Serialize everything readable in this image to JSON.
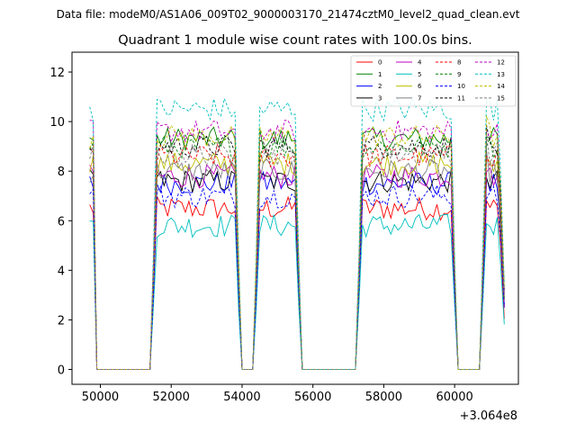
{
  "chart_data": {
    "type": "line",
    "suptitle": "Data file: modeM0/AS1A06_009T02_9000003170_21474cztM0_level2_quad_clean.evt",
    "title": "Quadrant 1 module wise count rates with 100.0s bins.",
    "xlabel": "",
    "ylabel": "",
    "x_offset_label": "+3.064e8",
    "xlim": [
      49200,
      61800
    ],
    "ylim": [
      -0.6,
      12.8
    ],
    "xticks": [
      50000,
      52000,
      54000,
      56000,
      58000,
      60000
    ],
    "xtick_labels": [
      "50000",
      "52000",
      "54000",
      "56000",
      "58000",
      "60000"
    ],
    "yticks": [
      0,
      2,
      4,
      6,
      8,
      10,
      12
    ],
    "ytick_labels": [
      "0",
      "2",
      "4",
      "6",
      "8",
      "10",
      "12"
    ],
    "legend_position": "top-right",
    "segments": [
      {
        "start": 49700,
        "end": 49800
      },
      {
        "start": 51500,
        "end": 53900
      },
      {
        "start": 54400,
        "end": 55600
      },
      {
        "start": 57300,
        "end": 60000
      },
      {
        "start": 60800,
        "end": 61400
      }
    ],
    "series": [
      {
        "name": "0",
        "color": "#ff0000",
        "dash": "solid",
        "level": 6.5,
        "amp": 0.3
      },
      {
        "name": "1",
        "color": "#008000",
        "dash": "solid",
        "level": 9.3,
        "amp": 0.3
      },
      {
        "name": "2",
        "color": "#0000ff",
        "dash": "solid",
        "level": 7.5,
        "amp": 0.3
      },
      {
        "name": "3",
        "color": "#000000",
        "dash": "solid",
        "level": 7.6,
        "amp": 0.3
      },
      {
        "name": "4",
        "color": "#bf00bf",
        "dash": "solid",
        "level": 7.8,
        "amp": 0.3
      },
      {
        "name": "5",
        "color": "#00bfbf",
        "dash": "solid",
        "level": 5.8,
        "amp": 0.3
      },
      {
        "name": "6",
        "color": "#bfbf00",
        "dash": "solid",
        "level": 8.3,
        "amp": 0.3
      },
      {
        "name": "7",
        "color": "#808080",
        "dash": "solid",
        "level": 8.0,
        "amp": 0.3
      },
      {
        "name": "8",
        "color": "#ff0000",
        "dash": "dashed",
        "level": 8.6,
        "amp": 0.3
      },
      {
        "name": "9",
        "color": "#008000",
        "dash": "dashed",
        "level": 9.0,
        "amp": 0.3
      },
      {
        "name": "10",
        "color": "#0000ff",
        "dash": "dashed",
        "level": 7.0,
        "amp": 0.3
      },
      {
        "name": "11",
        "color": "#000000",
        "dash": "dashed",
        "level": 9.0,
        "amp": 0.3
      },
      {
        "name": "12",
        "color": "#bf00bf",
        "dash": "dashed",
        "level": 9.6,
        "amp": 0.3
      },
      {
        "name": "13",
        "color": "#00bfbf",
        "dash": "dashed",
        "level": 10.5,
        "amp": 0.3
      },
      {
        "name": "14",
        "color": "#bfbf00",
        "dash": "dashed",
        "level": 9.4,
        "amp": 0.3
      },
      {
        "name": "15",
        "color": "#808080",
        "dash": "dashed",
        "level": 8.7,
        "amp": 0.3
      }
    ]
  }
}
